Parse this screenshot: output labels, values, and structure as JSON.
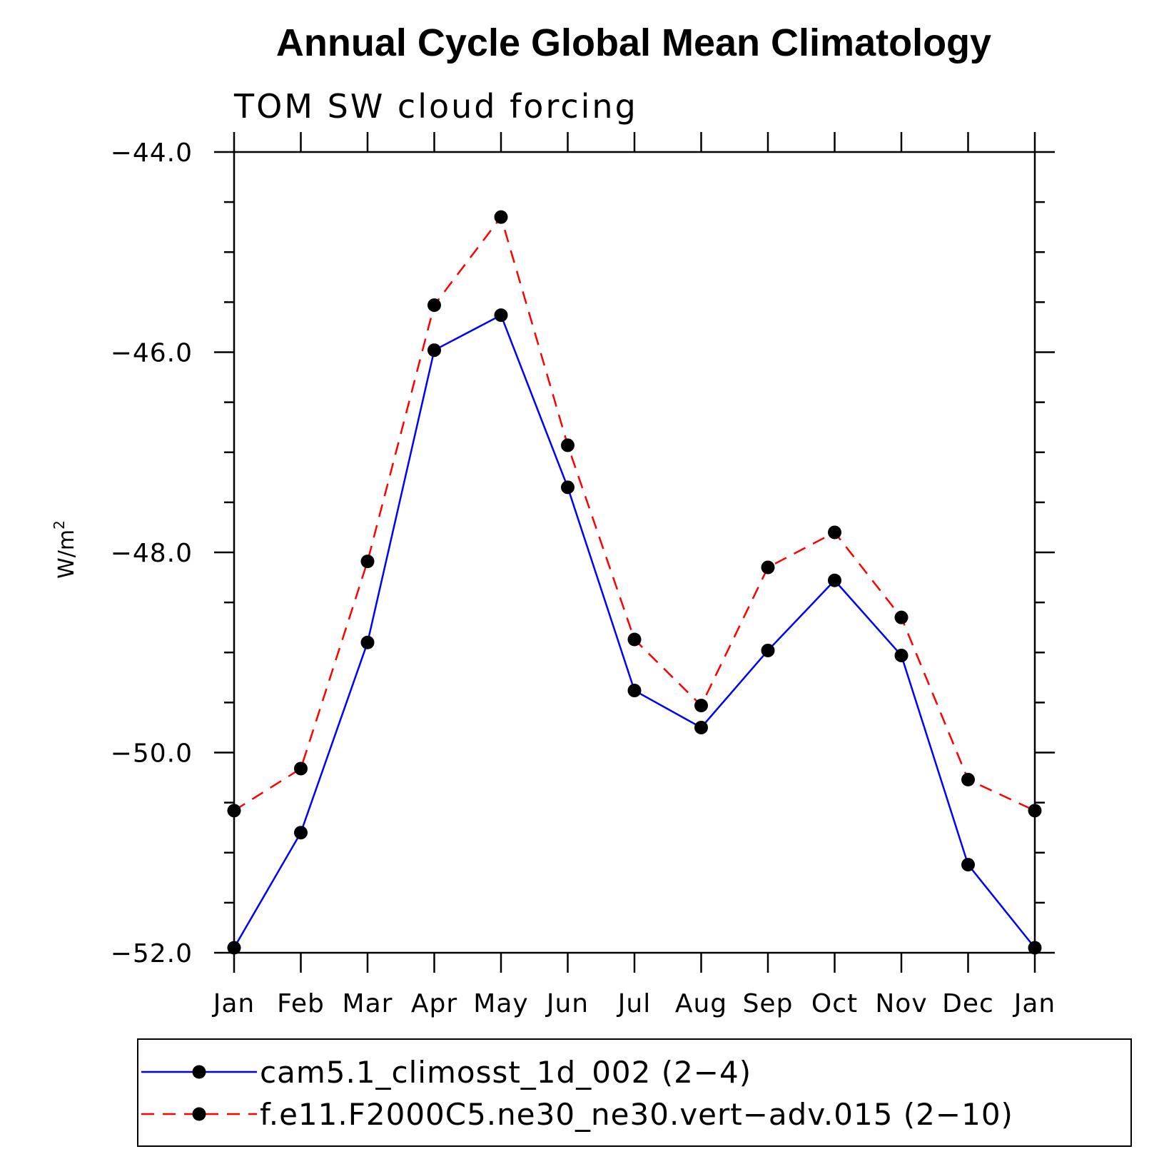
{
  "chart_data": {
    "type": "line",
    "title": "Annual Cycle Global Mean Climatology",
    "subtitle": "TOM SW cloud forcing",
    "ylabel_main": "W/m",
    "ylabel_sup": "2",
    "xlabel": "",
    "categories": [
      "Jan",
      "Feb",
      "Mar",
      "Apr",
      "May",
      "Jun",
      "Jul",
      "Aug",
      "Sep",
      "Oct",
      "Nov",
      "Dec",
      "Jan"
    ],
    "ylim": [
      -52.0,
      -44.0
    ],
    "yticks": [
      -44.0,
      -46.0,
      -48.0,
      -50.0,
      -52.0
    ],
    "ytick_labels": [
      "−44.0",
      "−46.0",
      "−48.0",
      "−50.0",
      "−52.0"
    ],
    "series": [
      {
        "name": "cam5.1_climosst_1d_002 (2−4)",
        "color": "#0000ff",
        "dash": "solid",
        "values": [
          -51.95,
          -50.8,
          -48.9,
          -45.98,
          -45.63,
          -47.35,
          -49.38,
          -49.75,
          -48.98,
          -48.28,
          -49.03,
          -51.12,
          -51.95
        ]
      },
      {
        "name": "f.e11.F2000C5.ne30_ne30.vert−adv.015 (2−10)",
        "color": "#ff0000",
        "dash": "dashed",
        "values": [
          -50.58,
          -50.16,
          -48.09,
          -45.53,
          -44.65,
          -46.93,
          -48.87,
          -49.53,
          -48.15,
          -47.8,
          -48.65,
          -50.27,
          -50.58
        ]
      }
    ],
    "marker_color": "#000000",
    "grid": false,
    "legend_position": "bottom"
  }
}
